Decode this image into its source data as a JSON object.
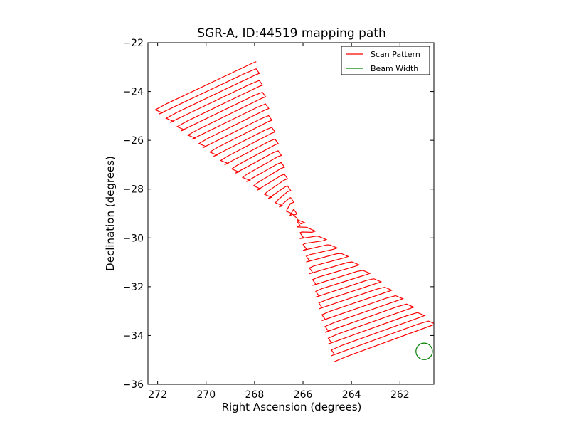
{
  "chart_data": {
    "type": "line",
    "title": "SGR-A, ID:44519 mapping path",
    "xlabel": "Right Ascension (degrees)",
    "ylabel": "Declination (degrees)",
    "xlim": [
      272.4,
      260.6
    ],
    "ylim": [
      -36,
      -22
    ],
    "x_inverted": true,
    "xticks": [
      272,
      270,
      268,
      266,
      264,
      262
    ],
    "xtick_labels": [
      "272",
      "270",
      "268",
      "266",
      "264",
      "262"
    ],
    "yticks": [
      -22,
      -24,
      -26,
      -28,
      -30,
      -32,
      -34,
      -36
    ],
    "ytick_labels": [
      "−22",
      "−24",
      "−26",
      "−28",
      "−30",
      "−32",
      "−34",
      "−36"
    ],
    "grid": false,
    "legend_position": "top-right",
    "series": [
      {
        "name": "Scan Pattern",
        "color": "#ff0000",
        "kind": "raster-scan",
        "num_rows": 52,
        "start_corner": [
          264.7,
          -35.07
        ],
        "end_corner": [
          268.0,
          -22.83
        ],
        "row_end_side_start": [
          260.6,
          -33.58
        ],
        "row_end_side_end": [
          272.1,
          -24.75
        ],
        "ra_amplitude": 0.07
      },
      {
        "name": "Beam Width",
        "color": "#008000",
        "kind": "circle",
        "center": [
          261.0,
          -34.65
        ],
        "radius_ra": 0.34
      }
    ]
  }
}
